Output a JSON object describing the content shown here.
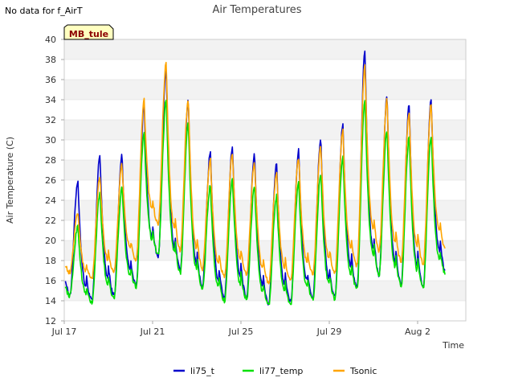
{
  "header": {
    "no_data_note": "No data for f_AirT"
  },
  "site_tag": "MB_tule",
  "colors": {
    "li75_t": "#0000cc",
    "li77_temp": "#00e000",
    "Tsonic": "#ffa500",
    "band": "#f2f2f2",
    "grid": "#d9d9d9",
    "tag_bg": "#ffffc0"
  },
  "chart_data": {
    "type": "line",
    "title": "Air Temperatures",
    "xlabel": "Time",
    "ylabel": "Air Temperature (C)",
    "ylim": [
      12,
      40
    ],
    "y_ticks": [
      12,
      14,
      16,
      18,
      20,
      22,
      24,
      26,
      28,
      30,
      32,
      34,
      36,
      38,
      40
    ],
    "x_range_days": [
      "Jul 17",
      "Aug 4"
    ],
    "x_ticks": [
      {
        "label": "Jul 17",
        "day": 0
      },
      {
        "label": "Jul 21",
        "day": 4
      },
      {
        "label": "Jul 25",
        "day": 8
      },
      {
        "label": "Jul 29",
        "day": 12
      },
      {
        "label": "Aug 2",
        "day": 16
      }
    ],
    "legend_position": "bottom",
    "grid": "horizontal bands",
    "series": [
      {
        "name": "li75_t",
        "daily_min": [
          14.6,
          14.0,
          14.5,
          15.6,
          18.4,
          17.0,
          15.4,
          14.3,
          14.4,
          13.7,
          13.9,
          14.3,
          14.3,
          15.3,
          16.5,
          15.6,
          15.3,
          17.0
        ],
        "daily_max": [
          25.9,
          28.5,
          28.5,
          33.5,
          37.0,
          34.0,
          28.8,
          29.4,
          28.7,
          27.6,
          29.0,
          30.2,
          31.6,
          39.0,
          34.4,
          33.5,
          34.2
        ]
      },
      {
        "name": "li77_temp",
        "daily_min": [
          14.5,
          13.8,
          14.3,
          15.4,
          18.6,
          16.8,
          15.2,
          14.0,
          14.2,
          13.5,
          13.7,
          14.1,
          14.2,
          15.1,
          16.6,
          15.5,
          15.2,
          16.6
        ],
        "daily_max": [
          21.4,
          24.7,
          25.2,
          30.8,
          33.9,
          31.6,
          25.4,
          26.0,
          25.4,
          24.4,
          25.9,
          26.6,
          28.3,
          34.0,
          31.0,
          30.2,
          30.4
        ]
      },
      {
        "name": "Tsonic",
        "daily_min": [
          16.8,
          16.2,
          16.9,
          18.1,
          21.6,
          19.0,
          17.2,
          16.4,
          16.6,
          15.8,
          16.0,
          16.6,
          16.8,
          17.5,
          19.0,
          17.9,
          17.6,
          19.2
        ],
        "daily_max": [
          22.8,
          26.5,
          27.5,
          34.0,
          37.6,
          34.1,
          28.0,
          28.6,
          27.9,
          26.8,
          28.3,
          29.4,
          30.9,
          37.5,
          34.0,
          32.8,
          33.6
        ]
      }
    ]
  }
}
